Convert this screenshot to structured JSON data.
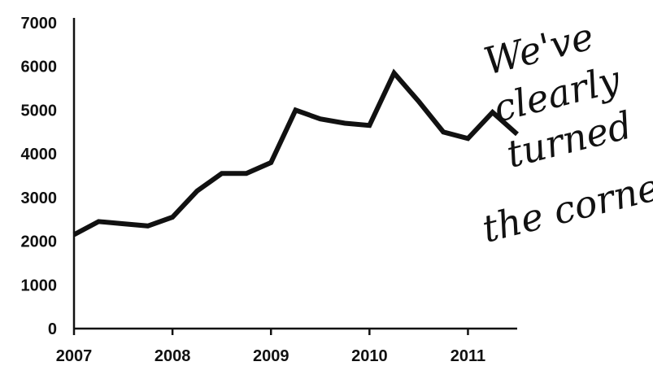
{
  "chart_data": {
    "type": "line",
    "title": "",
    "xlabel": "",
    "ylabel": "",
    "x_tick_labels": [
      "2007",
      "2008",
      "2009",
      "2010",
      "2011"
    ],
    "y_tick_labels": [
      "0",
      "1000",
      "2000",
      "3000",
      "4000",
      "5000",
      "6000",
      "7000"
    ],
    "xlim": [
      2007,
      2011.5
    ],
    "ylim": [
      0,
      7000
    ],
    "grid": false,
    "legend": "none",
    "series": [
      {
        "x": [
          2007,
          2007.25,
          2007.5,
          2007.75,
          2008,
          2008.25,
          2008.5,
          2008.75,
          2009,
          2009.25,
          2009.5,
          2009.75,
          2010,
          2010.25,
          2010.5,
          2010.75,
          2011,
          2011.25,
          2011.5
        ],
        "y": [
          2150,
          2450,
          2400,
          2350,
          2550,
          3150,
          3550,
          3550,
          3800,
          5000,
          4800,
          4700,
          4650,
          5850,
          5200,
          4500,
          4350,
          4950,
          4450
        ],
        "color": "#111111"
      }
    ]
  },
  "annotation": {
    "lines": [
      "We've",
      "clearly",
      "turned",
      "the corner."
    ]
  }
}
